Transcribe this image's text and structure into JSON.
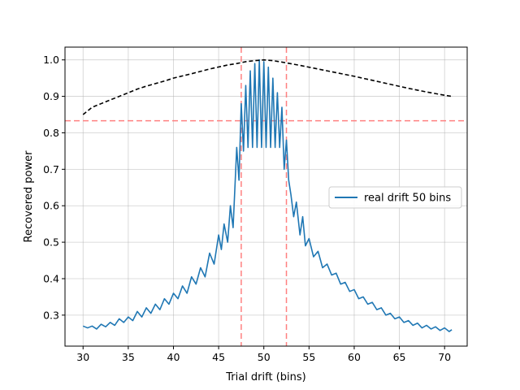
{
  "chart_data": {
    "type": "line",
    "title": "",
    "xlabel": "Trial drift (bins)",
    "ylabel": "Recovered power",
    "xlim": [
      28.0,
      72.5
    ],
    "ylim": [
      0.215,
      1.035
    ],
    "xticks": [
      30,
      35,
      40,
      45,
      50,
      55,
      60,
      65,
      70
    ],
    "yticks": [
      0.3,
      0.4,
      0.5,
      0.6,
      0.7,
      0.8,
      0.9,
      1.0
    ],
    "ytick_labels": [
      "0.3",
      "0.4",
      "0.5",
      "0.6",
      "0.7",
      "0.8",
      "0.9",
      "1.0"
    ],
    "grid": true,
    "legend": {
      "location": "center-right",
      "entries": [
        "real drift 50 bins"
      ]
    },
    "colors": {
      "series": "#1f77b4",
      "envelope": "#000000",
      "threshold": "#ff8080",
      "grid": "#b0b0b0"
    },
    "reference_lines": {
      "horizontal": [
        0.833
      ],
      "vertical": [
        47.5,
        52.5
      ]
    },
    "series": [
      {
        "name": "real drift 50 bins",
        "style": "solid",
        "x": [
          30.0,
          30.5,
          31.0,
          31.5,
          32.0,
          32.5,
          33.0,
          33.5,
          34.0,
          34.5,
          35.0,
          35.5,
          36.0,
          36.5,
          37.0,
          37.5,
          38.0,
          38.5,
          39.0,
          39.5,
          40.0,
          40.5,
          41.0,
          41.5,
          42.0,
          42.5,
          43.0,
          43.5,
          44.0,
          44.5,
          45.0,
          45.3,
          45.6,
          46.0,
          46.3,
          46.6,
          47.0,
          47.25,
          47.5,
          47.75,
          48.0,
          48.25,
          48.5,
          48.75,
          49.0,
          49.25,
          49.5,
          49.75,
          50.0,
          50.25,
          50.5,
          50.75,
          51.0,
          51.25,
          51.5,
          51.75,
          52.0,
          52.25,
          52.5,
          52.75,
          53.0,
          53.3,
          53.6,
          54.0,
          54.3,
          54.6,
          55.0,
          55.5,
          56.0,
          56.5,
          57.0,
          57.5,
          58.0,
          58.5,
          59.0,
          59.5,
          60.0,
          60.5,
          61.0,
          61.5,
          62.0,
          62.5,
          63.0,
          63.5,
          64.0,
          64.5,
          65.0,
          65.5,
          66.0,
          66.5,
          67.0,
          67.5,
          68.0,
          68.5,
          69.0,
          69.5,
          70.0,
          70.5,
          70.8
        ],
        "y": [
          0.27,
          0.265,
          0.27,
          0.262,
          0.275,
          0.268,
          0.28,
          0.272,
          0.29,
          0.28,
          0.295,
          0.285,
          0.31,
          0.295,
          0.32,
          0.305,
          0.33,
          0.315,
          0.345,
          0.33,
          0.36,
          0.345,
          0.38,
          0.36,
          0.405,
          0.385,
          0.43,
          0.405,
          0.47,
          0.44,
          0.52,
          0.48,
          0.55,
          0.5,
          0.6,
          0.54,
          0.76,
          0.67,
          0.88,
          0.75,
          0.93,
          0.76,
          0.97,
          0.76,
          0.99,
          0.76,
          1.0,
          0.76,
          0.995,
          0.76,
          0.98,
          0.76,
          0.95,
          0.76,
          0.91,
          0.76,
          0.87,
          0.7,
          0.78,
          0.67,
          0.63,
          0.57,
          0.61,
          0.52,
          0.57,
          0.49,
          0.51,
          0.46,
          0.475,
          0.43,
          0.44,
          0.41,
          0.415,
          0.385,
          0.39,
          0.365,
          0.37,
          0.345,
          0.35,
          0.33,
          0.335,
          0.315,
          0.32,
          0.3,
          0.305,
          0.29,
          0.295,
          0.28,
          0.285,
          0.272,
          0.278,
          0.265,
          0.272,
          0.262,
          0.268,
          0.258,
          0.265,
          0.255,
          0.26
        ]
      },
      {
        "name": "envelope",
        "style": "dashed",
        "x": [
          30.0,
          31.0,
          32.0,
          33.0,
          34.0,
          35.0,
          36.0,
          37.0,
          38.0,
          39.0,
          40.0,
          42.0,
          44.0,
          46.0,
          47.0,
          48.0,
          49.0,
          50.0,
          51.0,
          52.0,
          54.0,
          56.0,
          58.0,
          60.0,
          62.0,
          64.0,
          66.0,
          68.0,
          70.0,
          70.8
        ],
        "y": [
          0.85,
          0.87,
          0.88,
          0.89,
          0.9,
          0.91,
          0.92,
          0.928,
          0.935,
          0.942,
          0.95,
          0.962,
          0.975,
          0.986,
          0.99,
          0.995,
          0.998,
          1.0,
          0.998,
          0.994,
          0.985,
          0.975,
          0.965,
          0.955,
          0.944,
          0.933,
          0.922,
          0.912,
          0.903,
          0.9
        ]
      }
    ]
  }
}
